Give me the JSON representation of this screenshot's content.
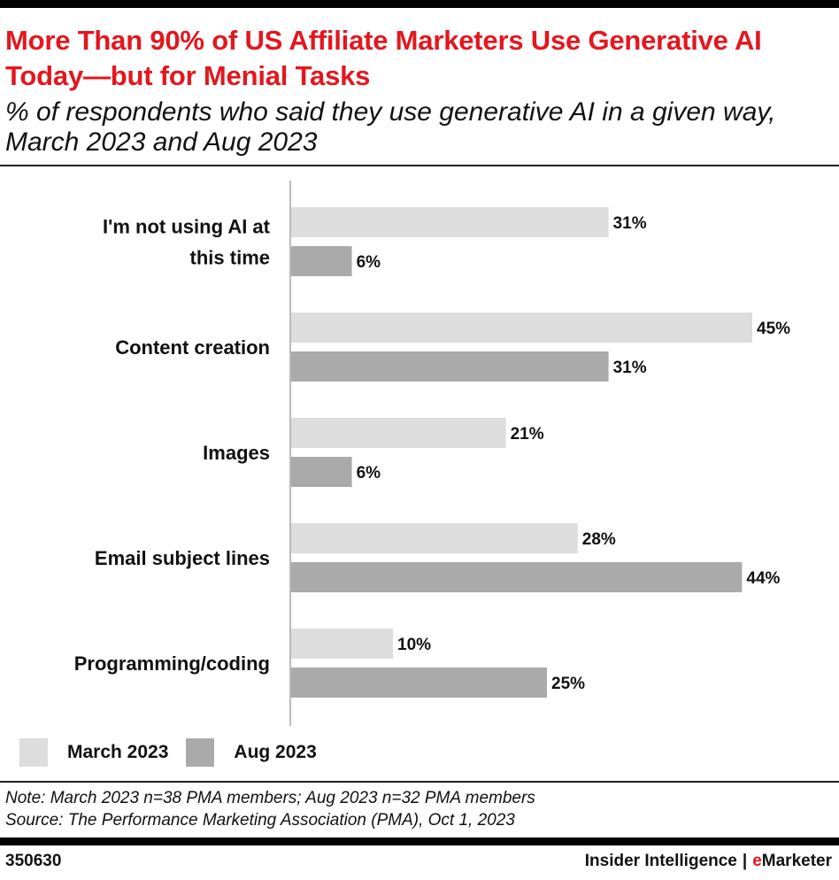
{
  "header": {
    "title": "More Than 90% of US Affiliate Marketers Use Generative AI Today—but for Menial Tasks",
    "subtitle": "% of respondents who said they use generative AI in a given way, March 2023 and Aug 2023"
  },
  "chart_data": {
    "type": "bar",
    "orientation": "horizontal",
    "title": "More Than 90% of US Affiliate Marketers Use Generative AI Today—but for Menial Tasks",
    "subtitle": "% of respondents who said they use generative AI in a given way, March 2023 and Aug 2023",
    "categories": [
      "I'm not using AI at this time",
      "Content creation",
      "Images",
      "Email subject lines",
      "Programming/coding"
    ],
    "series": [
      {
        "name": "March 2023",
        "values": [
          31,
          45,
          21,
          28,
          10
        ],
        "color": "#dddddd"
      },
      {
        "name": "Aug 2023",
        "values": [
          6,
          31,
          6,
          44,
          25
        ],
        "color": "#aaaaaa"
      }
    ],
    "value_suffix": "%",
    "xlim": [
      0,
      50
    ],
    "grid": false,
    "legend": "bottom-left"
  },
  "legend": {
    "march_label": "March 2023",
    "aug_label": "Aug 2023"
  },
  "footer": {
    "note": "Note: March 2023 n=38 PMA members; Aug 2023 n=32 PMA members",
    "source": "Source: The Performance Marketing Association (PMA), Oct 1, 2023",
    "chart_id": "350630",
    "brand_left": "Insider Intelligence",
    "brand_sep": "|",
    "brand_e": "e",
    "brand_right": "Marketer"
  }
}
